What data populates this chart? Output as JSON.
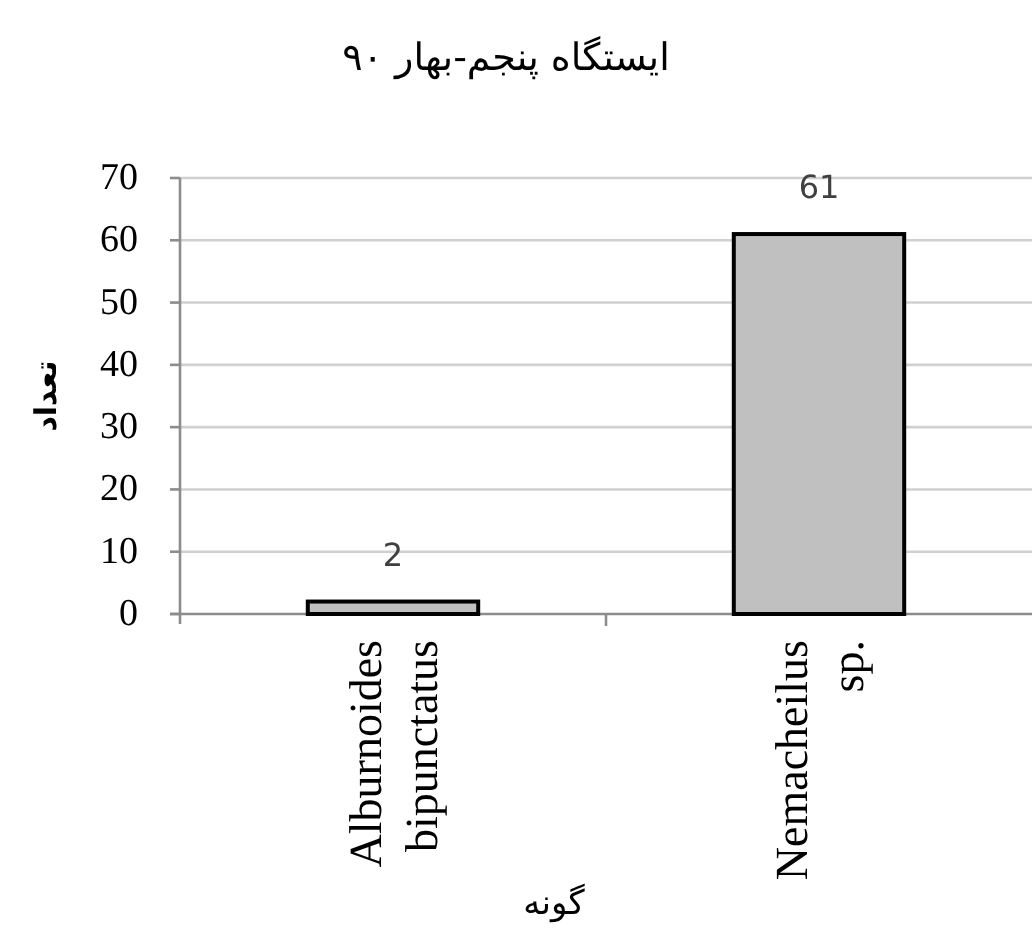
{
  "chart_data": {
    "type": "bar",
    "title": "ایستگاه پنجم-بهار ۹۰",
    "xlabel": "گونه",
    "ylabel": "تعداد",
    "categories": [
      "Alburnoides bipunctatus",
      "Nemacheilus sp."
    ],
    "values": [
      2,
      61
    ],
    "color": "#c0c0c0",
    "ylim": [
      0,
      70
    ],
    "yticks": [
      0,
      10,
      20,
      30,
      40,
      50,
      60,
      70
    ],
    "grid": "y",
    "data_labels": true
  }
}
